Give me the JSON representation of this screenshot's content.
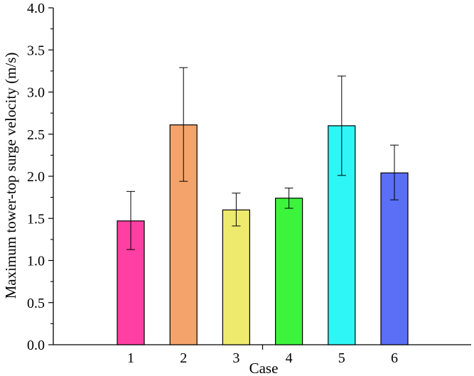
{
  "chart_data": {
    "type": "bar",
    "title": "",
    "xlabel": "Case",
    "ylabel": "Maximum tower-top surge velocity (m/s)",
    "categories": [
      "1",
      "2",
      "3",
      "4",
      "5",
      "6"
    ],
    "values": [
      1.47,
      2.61,
      1.6,
      1.74,
      2.6,
      2.04
    ],
    "error_low": [
      1.13,
      1.94,
      1.41,
      1.62,
      2.01,
      1.72
    ],
    "error_high": [
      1.82,
      3.29,
      1.8,
      1.86,
      3.19,
      2.37
    ],
    "colors": [
      "#ff3fa3",
      "#f4a46a",
      "#eeea6e",
      "#3cf43c",
      "#2ef6f6",
      "#5a6ef6"
    ],
    "ylim": [
      0.0,
      4.0
    ],
    "yticks": [
      "0.0",
      "0.5",
      "1.0",
      "1.5",
      "2.0",
      "2.5",
      "3.0",
      "3.5",
      "4.0"
    ],
    "grid": false,
    "legend": "none"
  }
}
